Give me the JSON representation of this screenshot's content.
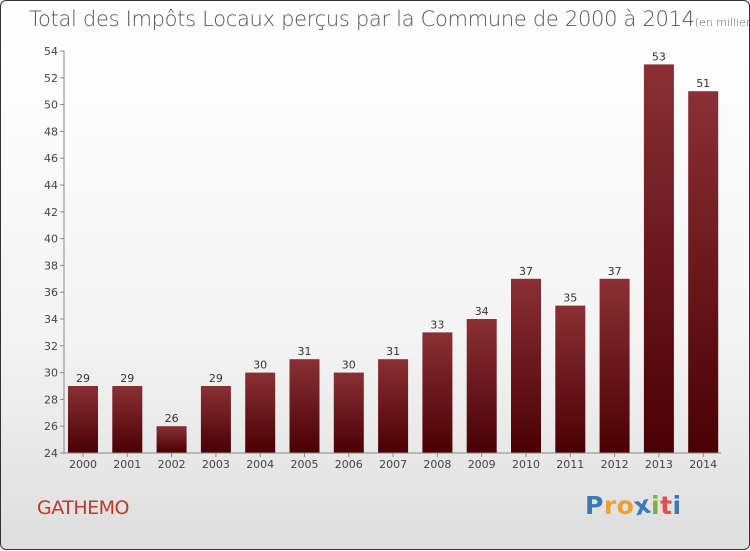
{
  "title": "Total des Impôts Locaux perçus par la Commune de 2000 à 2014",
  "title_unit": "(en milliers d'€)",
  "commune": "GATHEMO",
  "logo": {
    "letters": [
      "P",
      "r",
      "o",
      "x",
      "i",
      "t",
      "i"
    ],
    "colors": [
      "#3b78b8",
      "#f0a030",
      "#f0a030",
      "#3b78b8",
      "#78b43c",
      "#e05050",
      "#3b78b8"
    ]
  },
  "colors": {
    "bar_top": "#8a3034",
    "bar_bottom": "#4a0004",
    "title": "#555555",
    "commune": "#c0392b"
  },
  "chart_data": {
    "type": "bar",
    "categories": [
      "2000",
      "2001",
      "2002",
      "2003",
      "2004",
      "2005",
      "2006",
      "2007",
      "2008",
      "2009",
      "2010",
      "2011",
      "2012",
      "2013",
      "2014"
    ],
    "values": [
      29,
      29,
      26,
      29,
      30,
      31,
      30,
      31,
      33,
      34,
      37,
      35,
      37,
      53,
      51
    ],
    "ylim": [
      24,
      54
    ],
    "yticks": [
      "24",
      "26",
      "28",
      "30",
      "32",
      "34",
      "36",
      "38",
      "40",
      "42",
      "44",
      "46",
      "48",
      "50",
      "52",
      "54"
    ],
    "title": "Total des Impôts Locaux perçus par la Commune de 2000 à 2014",
    "xlabel": "",
    "ylabel": "en milliers d'€",
    "grid": false
  }
}
